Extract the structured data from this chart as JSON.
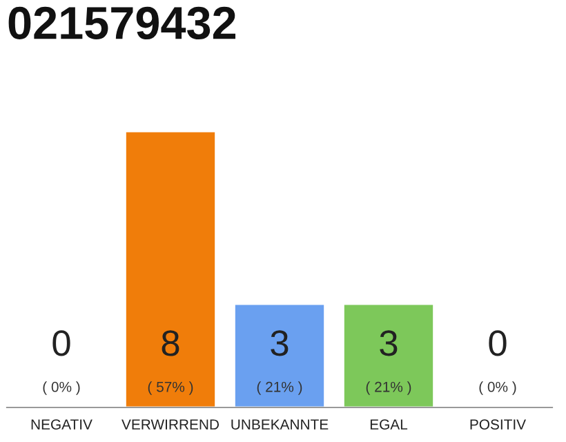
{
  "chart_data": {
    "type": "bar",
    "title": "021579432",
    "categories": [
      "NEGATIV",
      "VERWIRREND",
      "UNBEKANNTE",
      "EGAL",
      "POSITIV"
    ],
    "values": [
      0,
      8,
      3,
      3,
      0
    ],
    "colors": [
      null,
      "#f07d0a",
      "#6aa0f0",
      "#7dc85a",
      null
    ],
    "data_labels": true,
    "annotations": [
      "( 0% )",
      "( 57% )",
      "( 21% )",
      "( 21% )",
      "( 0% )"
    ],
    "tick_labels": "x"
  }
}
